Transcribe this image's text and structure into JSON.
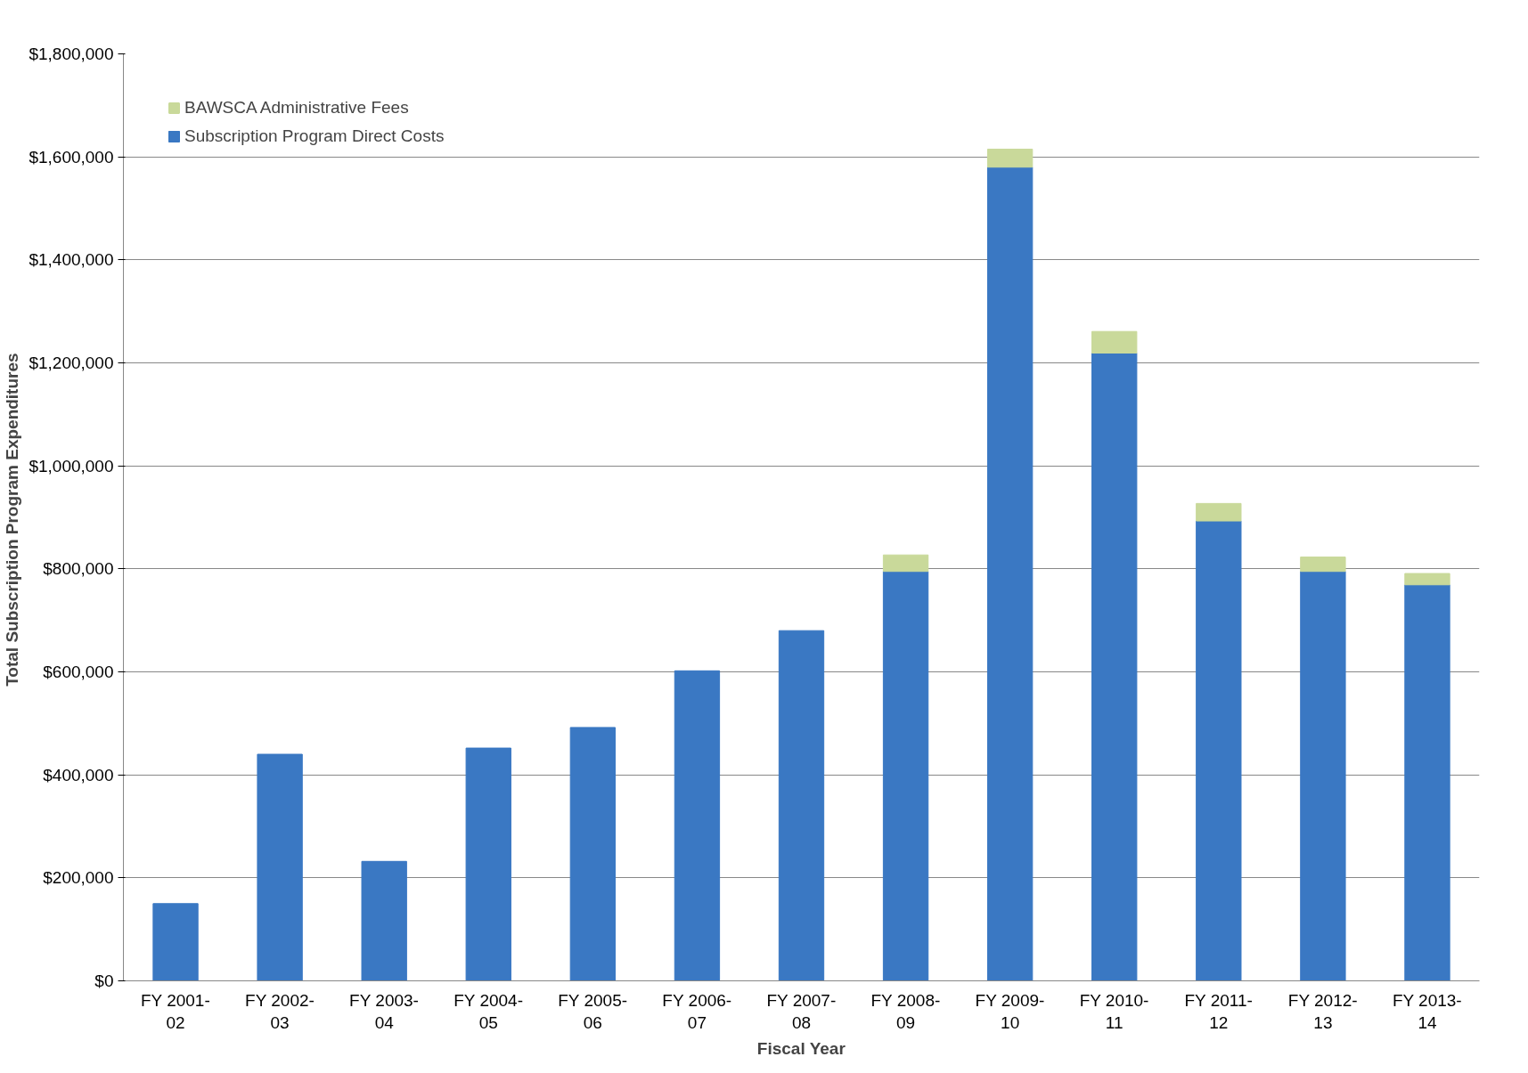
{
  "chart_data": {
    "type": "bar",
    "stacked": true,
    "xlabel": "Fiscal Year",
    "ylabel": "Total Subscription  Program Expenditures",
    "categories": [
      "FY 2001-02",
      "FY 2002-03",
      "FY 2003-04",
      "FY 2004-05",
      "FY 2005-06",
      "FY 2006-07",
      "FY 2007-08",
      "FY 2008-09",
      "FY 2009-10",
      "FY 2010-11",
      "FY 2011-12",
      "FY 2012-13",
      "FY 2013-14"
    ],
    "series": [
      {
        "name": "Subscription Program Direct Costs",
        "color": "#3a78c3",
        "values": [
          150000,
          440000,
          232000,
          452000,
          492000,
          602000,
          680000,
          795000,
          1580000,
          1219000,
          893000,
          795000,
          769000
        ]
      },
      {
        "name": "BAWSCA Administrative Fees",
        "color": "#c9d99a",
        "values": [
          null,
          null,
          null,
          null,
          null,
          null,
          null,
          32000,
          35000,
          42000,
          34000,
          28000,
          22000
        ]
      }
    ],
    "ylim": [
      0,
      1800000
    ],
    "yticks": [
      {
        "value": 0,
        "label": "$0"
      },
      {
        "value": 200000,
        "label": "$200,000"
      },
      {
        "value": 400000,
        "label": "$400,000"
      },
      {
        "value": 600000,
        "label": "$600,000"
      },
      {
        "value": 800000,
        "label": "$800,000"
      },
      {
        "value": 1000000,
        "label": "$1,000,000"
      },
      {
        "value": 1200000,
        "label": "$1,200,000"
      },
      {
        "value": 1400000,
        "label": "$1,400,000"
      },
      {
        "value": 1600000,
        "label": "$1,600,000"
      },
      {
        "value": 1800000,
        "label": "$1,800,000"
      }
    ],
    "grid": "y",
    "legend": "top left"
  }
}
